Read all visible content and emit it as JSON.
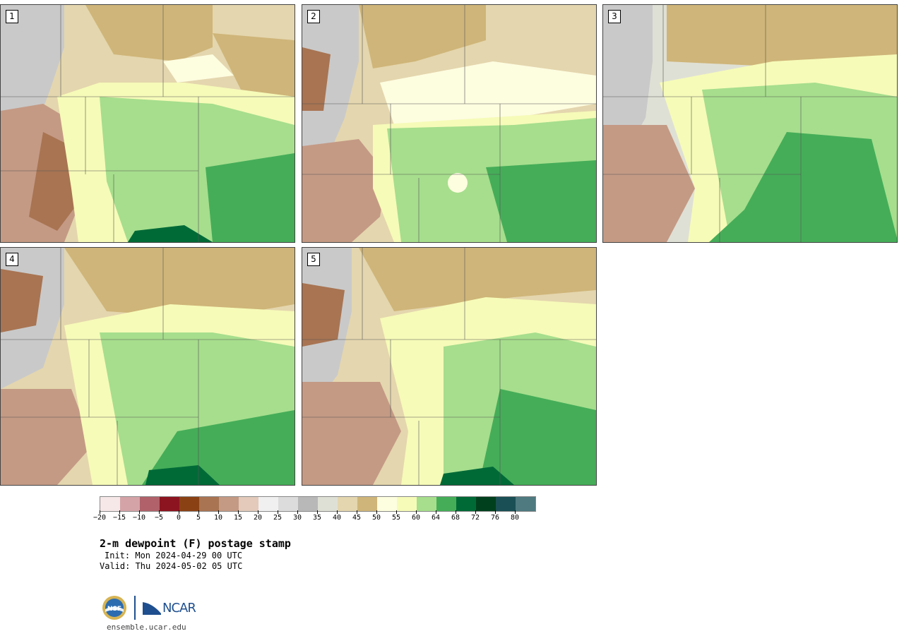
{
  "panels": [
    {
      "label": "1"
    },
    {
      "label": "2"
    },
    {
      "label": "3"
    },
    {
      "label": "4"
    },
    {
      "label": "5"
    }
  ],
  "colorbar": {
    "colors": [
      "#f6e8e8",
      "#d4a3a8",
      "#b0616a",
      "#8c1420",
      "#8a4215",
      "#a87452",
      "#c49a85",
      "#e3cabb",
      "#f0f0f0",
      "#dcdcdc",
      "#b8b8b8",
      "#dfe0d5",
      "#e4d6ae",
      "#cfb579",
      "#fdfde0",
      "#f6fbb8",
      "#a6de8d",
      "#45ad58",
      "#006a37",
      "#00401d",
      "#1a4f55",
      "#4e7a80"
    ],
    "tick_labels": [
      "−20",
      "−15",
      "−10",
      "−5",
      "0",
      "5",
      "10",
      "15",
      "20",
      "25",
      "30",
      "35",
      "40",
      "45",
      "50",
      "55",
      "60",
      "64",
      "68",
      "72",
      "76",
      "80"
    ]
  },
  "caption": {
    "title": "2-m dewpoint (F) postage stamp",
    "init": "Init: Mon 2024-04-29 00 UTC",
    "valid": "Valid: Thu 2024-05-02 05 UTC"
  },
  "logos": {
    "nsf": "NSF",
    "ncar": "NCAR",
    "nsf_icon": "nsf-seal",
    "ncar_icon": "ncar-logo"
  },
  "site": "ensemble.ucar.edu"
}
